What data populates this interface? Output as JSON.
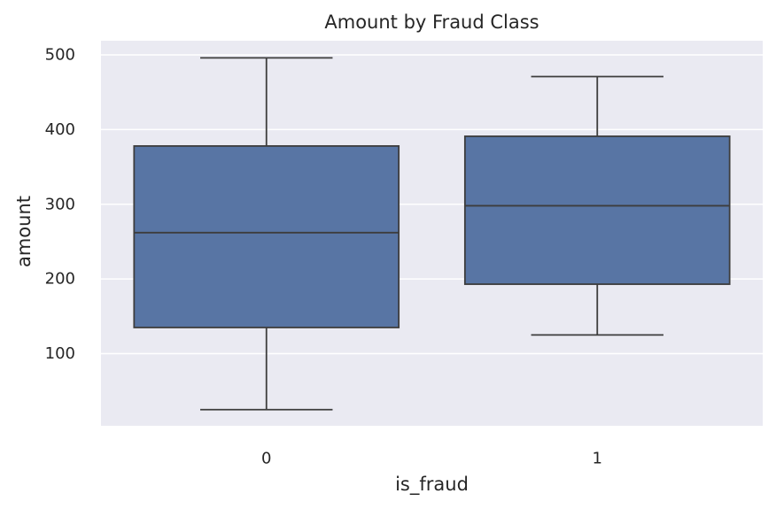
{
  "chart_data": {
    "type": "box",
    "title": "Amount by Fraud Class",
    "xlabel": "is_fraud",
    "ylabel": "amount",
    "categories": [
      "0",
      "1"
    ],
    "ylim": [
      0,
      520
    ],
    "yticks": [
      100,
      200,
      300,
      400,
      500
    ],
    "grid": true,
    "legend": "none",
    "series": [
      {
        "category": "0",
        "whisker_low": 25,
        "q1": 135,
        "median": 262,
        "q3": 378,
        "whisker_high": 496
      },
      {
        "category": "1",
        "whisker_low": 125,
        "q1": 193,
        "median": 298,
        "q3": 391,
        "whisker_high": 471
      }
    ],
    "colors": {
      "box_fill": "#5875a4",
      "box_edge": "#3d3d3d",
      "plot_background": "#eaeaf2",
      "grid_line": "#ffffff",
      "text": "#262626"
    }
  }
}
